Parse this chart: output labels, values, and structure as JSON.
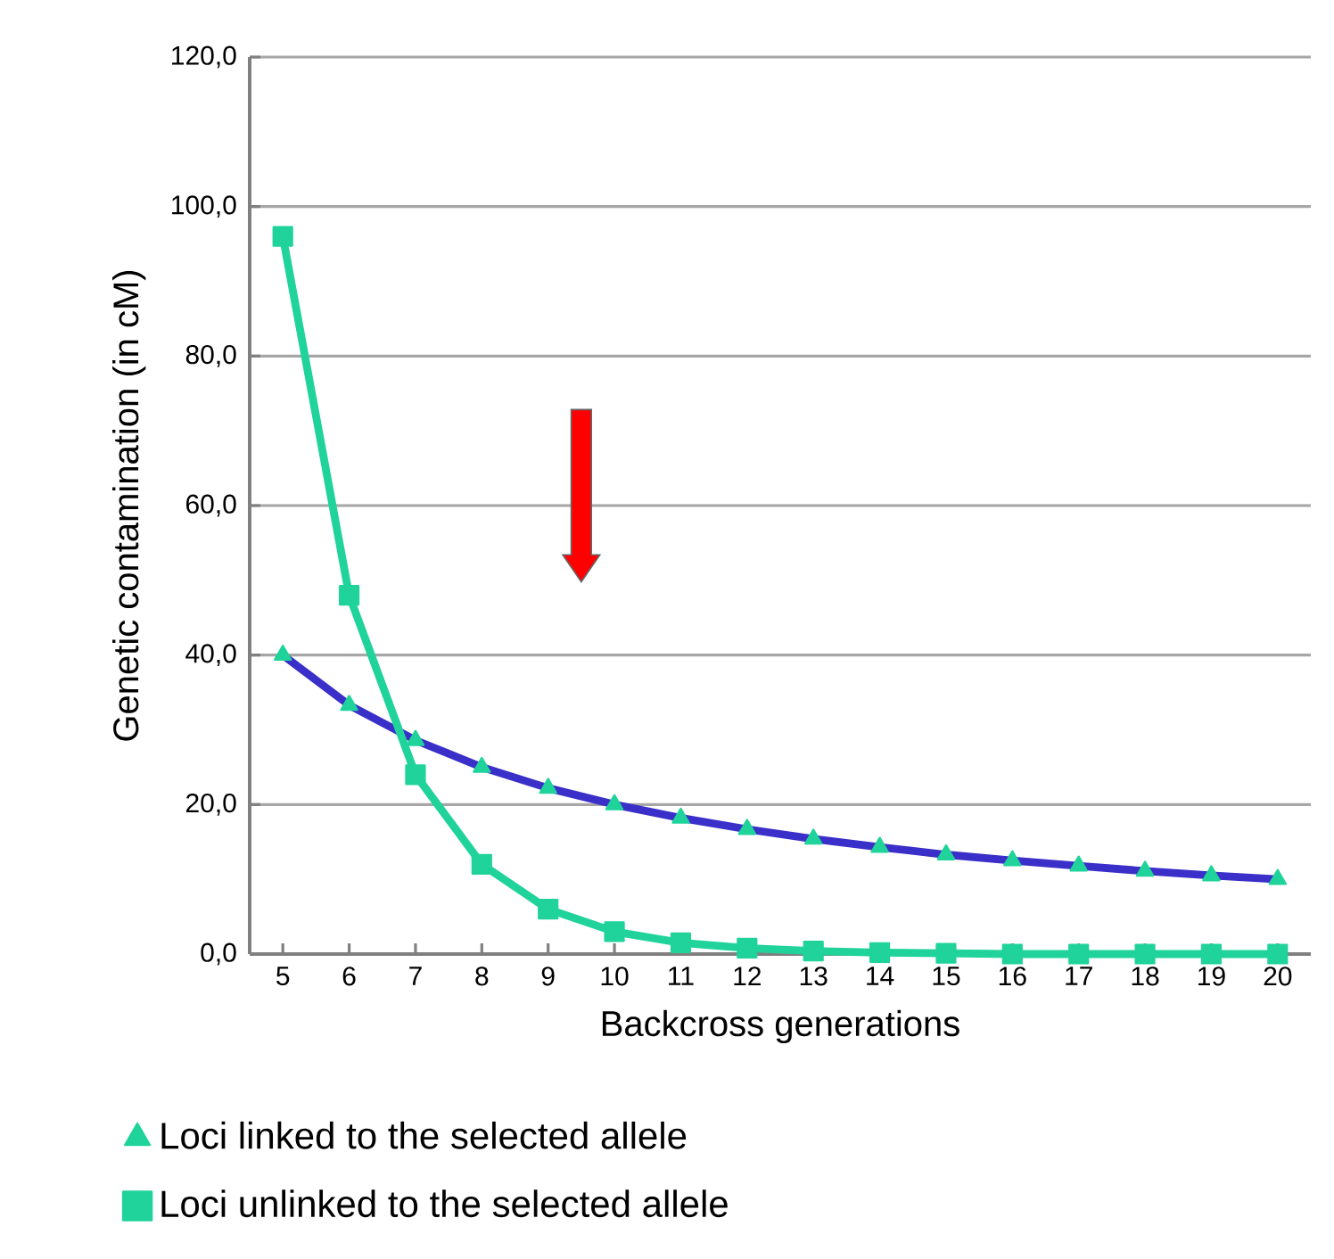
{
  "chart_data": {
    "type": "line",
    "xlabel": "Backcross generations",
    "ylabel": "Genetic contamination (in cM)",
    "categories": [
      "5",
      "6",
      "7",
      "8",
      "9",
      "10",
      "11",
      "12",
      "13",
      "14",
      "15",
      "16",
      "17",
      "18",
      "19",
      "20"
    ],
    "series": [
      {
        "name": "Loci linked to the selected allele",
        "color": "#3a2fc8",
        "marker": "triangle",
        "values": [
          40.0,
          33.3,
          28.6,
          25.0,
          22.2,
          20.0,
          18.2,
          16.7,
          15.4,
          14.3,
          13.3,
          12.5,
          11.8,
          11.1,
          10.5,
          10.0
        ]
      },
      {
        "name": "Loci unlinked to the selected allele",
        "color": "#1fd39a",
        "marker": "square",
        "values": [
          96.0,
          48.0,
          24.0,
          12.0,
          6.0,
          3.0,
          1.5,
          0.8,
          0.4,
          0.2,
          0.1,
          0.0,
          0.0,
          0.0,
          0.0,
          0.0
        ]
      }
    ],
    "ylim": [
      0,
      120
    ],
    "yticks": [
      {
        "value": 0,
        "label": "0,0"
      },
      {
        "value": 20,
        "label": "20,0"
      },
      {
        "value": 40,
        "label": "40,0"
      },
      {
        "value": 60,
        "label": "60,0"
      },
      {
        "value": 80,
        "label": "80,0"
      },
      {
        "value": 100,
        "label": "100,0"
      },
      {
        "value": 120,
        "label": "120,0"
      }
    ],
    "grid": "y",
    "legend": "bottom left",
    "line_style": "solid"
  }
}
